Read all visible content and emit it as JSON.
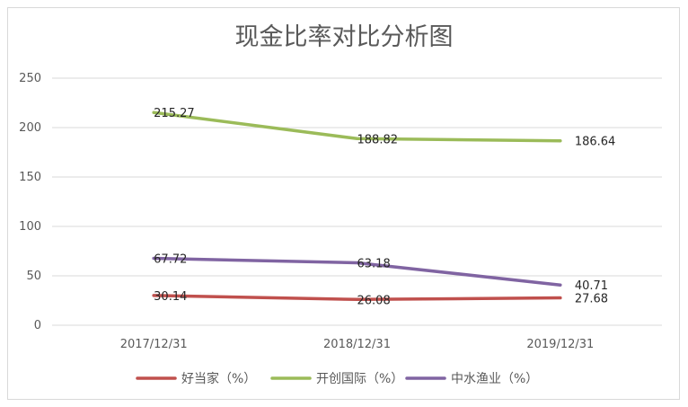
{
  "chart_data": {
    "type": "line",
    "title": "现金比率对比分析图",
    "categories": [
      "2017/12/31",
      "2018/12/31",
      "2019/12/31"
    ],
    "ylim": [
      0,
      250
    ],
    "yticks": [
      0,
      50,
      100,
      150,
      200,
      250
    ],
    "grid": true,
    "legend_position": "bottom",
    "series": [
      {
        "name": "好当家（%）",
        "color": "#c0504d",
        "values": [
          30.14,
          26.08,
          27.68
        ],
        "labels": [
          "30.14",
          "26.08",
          "27.68"
        ]
      },
      {
        "name": "开创国际（%）",
        "color": "#9bbb59",
        "values": [
          215.27,
          188.82,
          186.64
        ],
        "labels": [
          "215.27",
          "188.82",
          "186.64"
        ]
      },
      {
        "name": "中水渔业（%）",
        "color": "#8064a2",
        "values": [
          67.72,
          63.18,
          40.71
        ],
        "labels": [
          "67.72",
          "63.18",
          "40.71"
        ]
      }
    ]
  }
}
